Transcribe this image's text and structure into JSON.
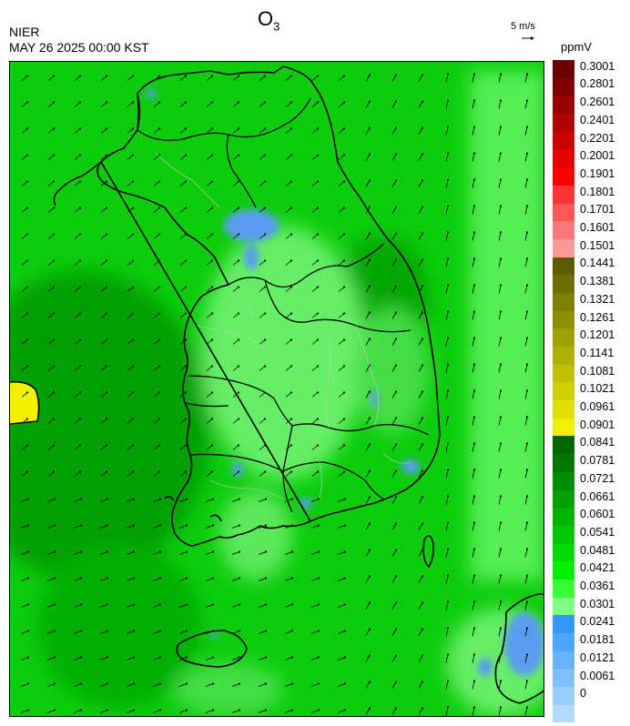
{
  "header": {
    "title": "O",
    "title_sub": "3",
    "org": "NIER",
    "timestamp": "MAY 26 2025 00:00 KST",
    "vector_scale": "5 m/s",
    "unit": "ppmV"
  },
  "legend": {
    "ticks": [
      "0.3001",
      "0.2801",
      "0.2601",
      "0.2401",
      "0.2201",
      "0.2001",
      "0.1901",
      "0.1801",
      "0.1701",
      "0.1601",
      "0.1501",
      "0.1441",
      "0.1381",
      "0.1321",
      "0.1261",
      "0.1201",
      "0.1141",
      "0.1081",
      "0.1021",
      "0.0961",
      "0.0901",
      "0.0841",
      "0.0781",
      "0.0721",
      "0.0661",
      "0.0601",
      "0.0541",
      "0.0481",
      "0.0421",
      "0.0361",
      "0.0301",
      "0.0241",
      "0.0181",
      "0.0121",
      "0.0061",
      "0"
    ],
    "colors": [
      "#6b0000",
      "#800000",
      "#990000",
      "#b30000",
      "#cc0000",
      "#e60000",
      "#ff0000",
      "#ff3333",
      "#ff5555",
      "#ff7777",
      "#ff9999",
      "#5c5c00",
      "#6e6e00",
      "#808000",
      "#8f8f00",
      "#a0a000",
      "#b0b000",
      "#c0c000",
      "#d0d000",
      "#e0e000",
      "#f0f000",
      "#006400",
      "#007800",
      "#008c00",
      "#00a000",
      "#00b400",
      "#00c800",
      "#00dc00",
      "#00f000",
      "#33ff33",
      "#80ff80",
      "#3399ff",
      "#4da6ff",
      "#66b3ff",
      "#80bfff",
      "#99ccff",
      "#b3d9ff"
    ]
  },
  "map": {
    "background_color": "#0ccc0c",
    "dark_zone_color": "#00a000",
    "light_zone_color": "#6ef06e",
    "low_zone_color": "#5a9cf0",
    "high_zone_color": "#f0f000",
    "coast_color": "#000000",
    "boundary_color": "#c8c8c8"
  }
}
